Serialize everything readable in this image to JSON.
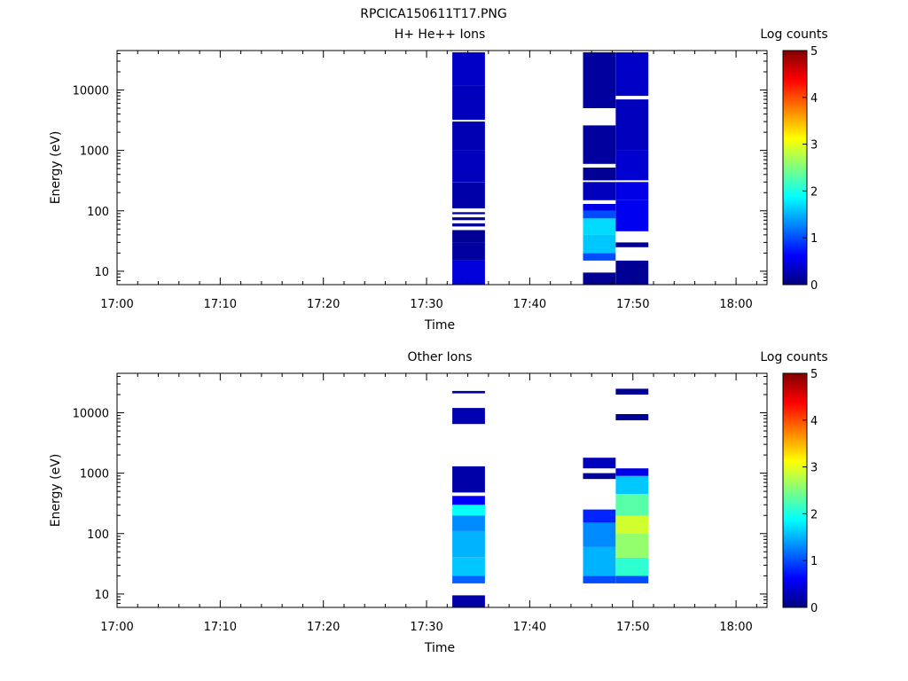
{
  "figure": {
    "title": "RPCICA150611T17.PNG"
  },
  "colors": {
    "colormap": [
      "#000080",
      "#0000ff",
      "#0080ff",
      "#00ffff",
      "#80ff80",
      "#ffff00",
      "#ff8000",
      "#ff0000",
      "#800000"
    ],
    "background": "#ffffff",
    "axis": "#000000"
  },
  "chart_data": [
    {
      "type": "heatmap",
      "title": "H+ He++ Ions",
      "xlabel": "Time",
      "ylabel": "Energy (eV)",
      "x_ticks": [
        "17:00",
        "17:10",
        "17:20",
        "17:30",
        "17:40",
        "17:50",
        "18:00"
      ],
      "xlim": [
        "17:00",
        "18:03"
      ],
      "y_scale": "log",
      "ylim": [
        6,
        45000
      ],
      "y_ticks": [
        "10",
        "100",
        "1000",
        "10000"
      ],
      "colorbar": {
        "label": "Log counts",
        "range": [
          0,
          5
        ],
        "ticks": [
          "0",
          "1",
          "2",
          "3",
          "4",
          "5"
        ]
      },
      "columns": [
        {
          "x_start": "17:32:30",
          "x_end": "17:35:40",
          "bins": [
            {
              "e_low": 6,
              "e_high": 15,
              "log_counts": 0.45
            },
            {
              "e_low": 15,
              "e_high": 30,
              "log_counts": 0.15
            },
            {
              "e_low": 30,
              "e_high": 48,
              "log_counts": 0.1
            },
            {
              "e_low": 55,
              "e_high": 62,
              "log_counts": 0.1
            },
            {
              "e_low": 70,
              "e_high": 78,
              "log_counts": 0.1
            },
            {
              "e_low": 88,
              "e_high": 95,
              "log_counts": 0.1
            },
            {
              "e_low": 110,
              "e_high": 300,
              "log_counts": 0.2
            },
            {
              "e_low": 300,
              "e_high": 1000,
              "log_counts": 0.3
            },
            {
              "e_low": 1000,
              "e_high": 3000,
              "log_counts": 0.25
            },
            {
              "e_low": 3200,
              "e_high": 12000,
              "log_counts": 0.3
            },
            {
              "e_low": 12000,
              "e_high": 42000,
              "log_counts": 0.35
            }
          ]
        },
        {
          "x_start": "17:45:10",
          "x_end": "17:48:20",
          "bins": [
            {
              "e_low": 6,
              "e_high": 9.5,
              "log_counts": 0.1
            },
            {
              "e_low": 15,
              "e_high": 20,
              "log_counts": 1.0
            },
            {
              "e_low": 20,
              "e_high": 40,
              "log_counts": 1.6
            },
            {
              "e_low": 40,
              "e_high": 75,
              "log_counts": 1.7
            },
            {
              "e_low": 75,
              "e_high": 100,
              "log_counts": 1.0
            },
            {
              "e_low": 100,
              "e_high": 130,
              "log_counts": 0.5
            },
            {
              "e_low": 150,
              "e_high": 300,
              "log_counts": 0.3
            },
            {
              "e_low": 320,
              "e_high": 520,
              "log_counts": 0.1
            },
            {
              "e_low": 600,
              "e_high": 2600,
              "log_counts": 0.15
            },
            {
              "e_low": 5000,
              "e_high": 42000,
              "log_counts": 0.15
            }
          ]
        },
        {
          "x_start": "17:48:20",
          "x_end": "17:51:30",
          "bins": [
            {
              "e_low": 6,
              "e_high": 15,
              "log_counts": 0.1
            },
            {
              "e_low": 25,
              "e_high": 30,
              "log_counts": 0.1
            },
            {
              "e_low": 46,
              "e_high": 150,
              "log_counts": 0.55
            },
            {
              "e_low": 150,
              "e_high": 300,
              "log_counts": 0.5
            },
            {
              "e_low": 320,
              "e_high": 1000,
              "log_counts": 0.4
            },
            {
              "e_low": 1000,
              "e_high": 7000,
              "log_counts": 0.3
            },
            {
              "e_low": 8000,
              "e_high": 42000,
              "log_counts": 0.35
            }
          ]
        }
      ]
    },
    {
      "type": "heatmap",
      "title": "Other Ions",
      "xlabel": "Time",
      "ylabel": "Energy (eV)",
      "x_ticks": [
        "17:00",
        "17:10",
        "17:20",
        "17:30",
        "17:40",
        "17:50",
        "18:00"
      ],
      "xlim": [
        "17:00",
        "18:03"
      ],
      "y_scale": "log",
      "ylim": [
        6,
        45000
      ],
      "y_ticks": [
        "10",
        "100",
        "1000",
        "10000"
      ],
      "colorbar": {
        "label": "Log counts",
        "range": [
          0,
          5
        ],
        "ticks": [
          "0",
          "1",
          "2",
          "3",
          "4",
          "5"
        ]
      },
      "columns": [
        {
          "x_start": "17:32:30",
          "x_end": "17:35:40",
          "bins": [
            {
              "e_low": 6,
              "e_high": 9.5,
              "log_counts": 0.2
            },
            {
              "e_low": 15,
              "e_high": 20,
              "log_counts": 1.1
            },
            {
              "e_low": 20,
              "e_high": 40,
              "log_counts": 1.6
            },
            {
              "e_low": 40,
              "e_high": 110,
              "log_counts": 1.5
            },
            {
              "e_low": 110,
              "e_high": 200,
              "log_counts": 1.3
            },
            {
              "e_low": 200,
              "e_high": 300,
              "log_counts": 1.9
            },
            {
              "e_low": 300,
              "e_high": 420,
              "log_counts": 0.6
            },
            {
              "e_low": 480,
              "e_high": 1300,
              "log_counts": 0.2
            },
            {
              "e_low": 6500,
              "e_high": 12000,
              "log_counts": 0.25
            },
            {
              "e_low": 21000,
              "e_high": 23000,
              "log_counts": 0.15
            }
          ]
        },
        {
          "x_start": "17:45:10",
          "x_end": "17:48:20",
          "bins": [
            {
              "e_low": 15,
              "e_high": 20,
              "log_counts": 1.0
            },
            {
              "e_low": 20,
              "e_high": 60,
              "log_counts": 1.5
            },
            {
              "e_low": 60,
              "e_high": 150,
              "log_counts": 1.3
            },
            {
              "e_low": 150,
              "e_high": 250,
              "log_counts": 0.8
            },
            {
              "e_low": 800,
              "e_high": 1000,
              "log_counts": 0.1
            },
            {
              "e_low": 1200,
              "e_high": 1800,
              "log_counts": 0.3
            }
          ]
        },
        {
          "x_start": "17:48:20",
          "x_end": "17:51:30",
          "bins": [
            {
              "e_low": 15,
              "e_high": 20,
              "log_counts": 1.0
            },
            {
              "e_low": 20,
              "e_high": 40,
              "log_counts": 2.1
            },
            {
              "e_low": 40,
              "e_high": 100,
              "log_counts": 2.6
            },
            {
              "e_low": 100,
              "e_high": 200,
              "log_counts": 2.9
            },
            {
              "e_low": 200,
              "e_high": 450,
              "log_counts": 2.3
            },
            {
              "e_low": 450,
              "e_high": 900,
              "log_counts": 1.6
            },
            {
              "e_low": 900,
              "e_high": 1200,
              "log_counts": 0.5
            },
            {
              "e_low": 7500,
              "e_high": 9500,
              "log_counts": 0.1
            },
            {
              "e_low": 20000,
              "e_high": 25000,
              "log_counts": 0.1
            }
          ]
        }
      ]
    }
  ]
}
